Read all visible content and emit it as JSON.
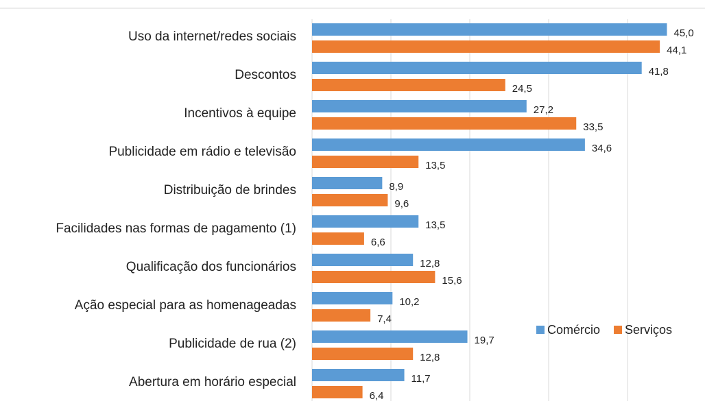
{
  "chart_data": {
    "type": "bar",
    "orientation": "horizontal",
    "categories": [
      "Uso da internet/redes sociais",
      "Descontos",
      "Incentivos à equipe",
      "Publicidade em rádio e televisão",
      "Distribuição de brindes",
      "Facilidades nas formas de pagamento (1)",
      "Qualificação dos funcionários",
      "Ação especial para as homenageadas",
      "Publicidade de rua (2)",
      "Abertura em horário especial"
    ],
    "series": [
      {
        "name": "Comércio",
        "color": "#5b9bd5",
        "values": [
          45.0,
          41.8,
          27.2,
          34.6,
          8.9,
          13.5,
          12.8,
          10.2,
          19.7,
          11.7
        ],
        "value_labels": [
          "45,0",
          "41,8",
          "27,2",
          "34,6",
          "8,9",
          "13,5",
          "12,8",
          "10,2",
          "19,7",
          "11,7"
        ]
      },
      {
        "name": "Serviços",
        "color": "#ed7d31",
        "values": [
          44.1,
          24.5,
          33.5,
          13.5,
          9.6,
          6.6,
          15.6,
          7.4,
          12.8,
          6.4
        ],
        "value_labels": [
          "44,1",
          "24,5",
          "33,5",
          "13,5",
          "9,6",
          "6,6",
          "15,6",
          "7,4",
          "12,8",
          "6,4"
        ]
      }
    ],
    "xlim": [
      0,
      50
    ],
    "xticks": [
      0,
      10,
      20,
      30,
      40,
      50
    ],
    "grid": true,
    "legend": "lower right"
  }
}
